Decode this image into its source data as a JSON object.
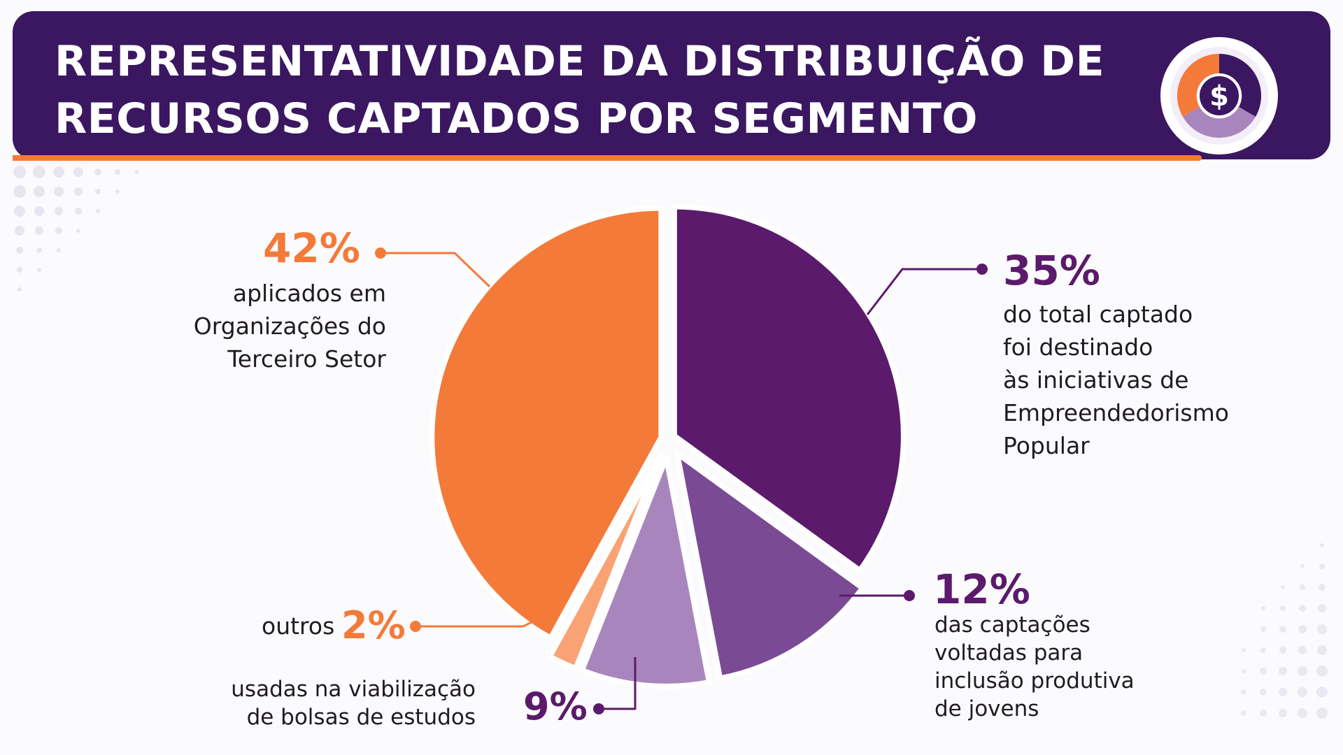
{
  "header": {
    "title_line1": "REPRESENTATIVIDADE DA DISTRIBUIÇÃO DE",
    "title_line2": "RECURSOS CAPTADOS POR SEGMENTO",
    "badge_icon": "dollar-coin-icon"
  },
  "colors": {
    "header_bg": "#3a1760",
    "accent_orange": "#f47a3a",
    "dark_purple": "#5b1a6b",
    "mid_purple": "#7b4a94",
    "light_purple": "#a886bd",
    "light_orange": "#f9a273"
  },
  "chart_data": {
    "type": "pie",
    "title": "REPRESENTATIVIDADE DA DISTRIBUIÇÃO DE RECURSOS CAPTADOS POR SEGMENTO",
    "exploded": true,
    "unit": "%",
    "slices": [
      {
        "value": 35,
        "label": "35%",
        "description_lines": [
          "do total captado",
          "foi destinado",
          "às iniciativas de",
          "Empreendedorismo",
          "Popular"
        ],
        "color": "#5b1a6b"
      },
      {
        "value": 12,
        "label": "12%",
        "description_lines": [
          "das captações",
          "voltadas para",
          "inclusão produtiva",
          "de jovens"
        ],
        "color": "#7b4a94"
      },
      {
        "value": 9,
        "label": "9%",
        "description_lines": [
          "usadas na viabilização",
          "de bolsas de estudos"
        ],
        "color": "#a886bd"
      },
      {
        "value": 2,
        "label": "2%",
        "description_lines": [
          "outros"
        ],
        "color": "#f9a273"
      },
      {
        "value": 42,
        "label": "42%",
        "description_lines": [
          "aplicados em",
          "Organizações do",
          "Terceiro Setor"
        ],
        "color": "#f47a3a"
      }
    ]
  }
}
